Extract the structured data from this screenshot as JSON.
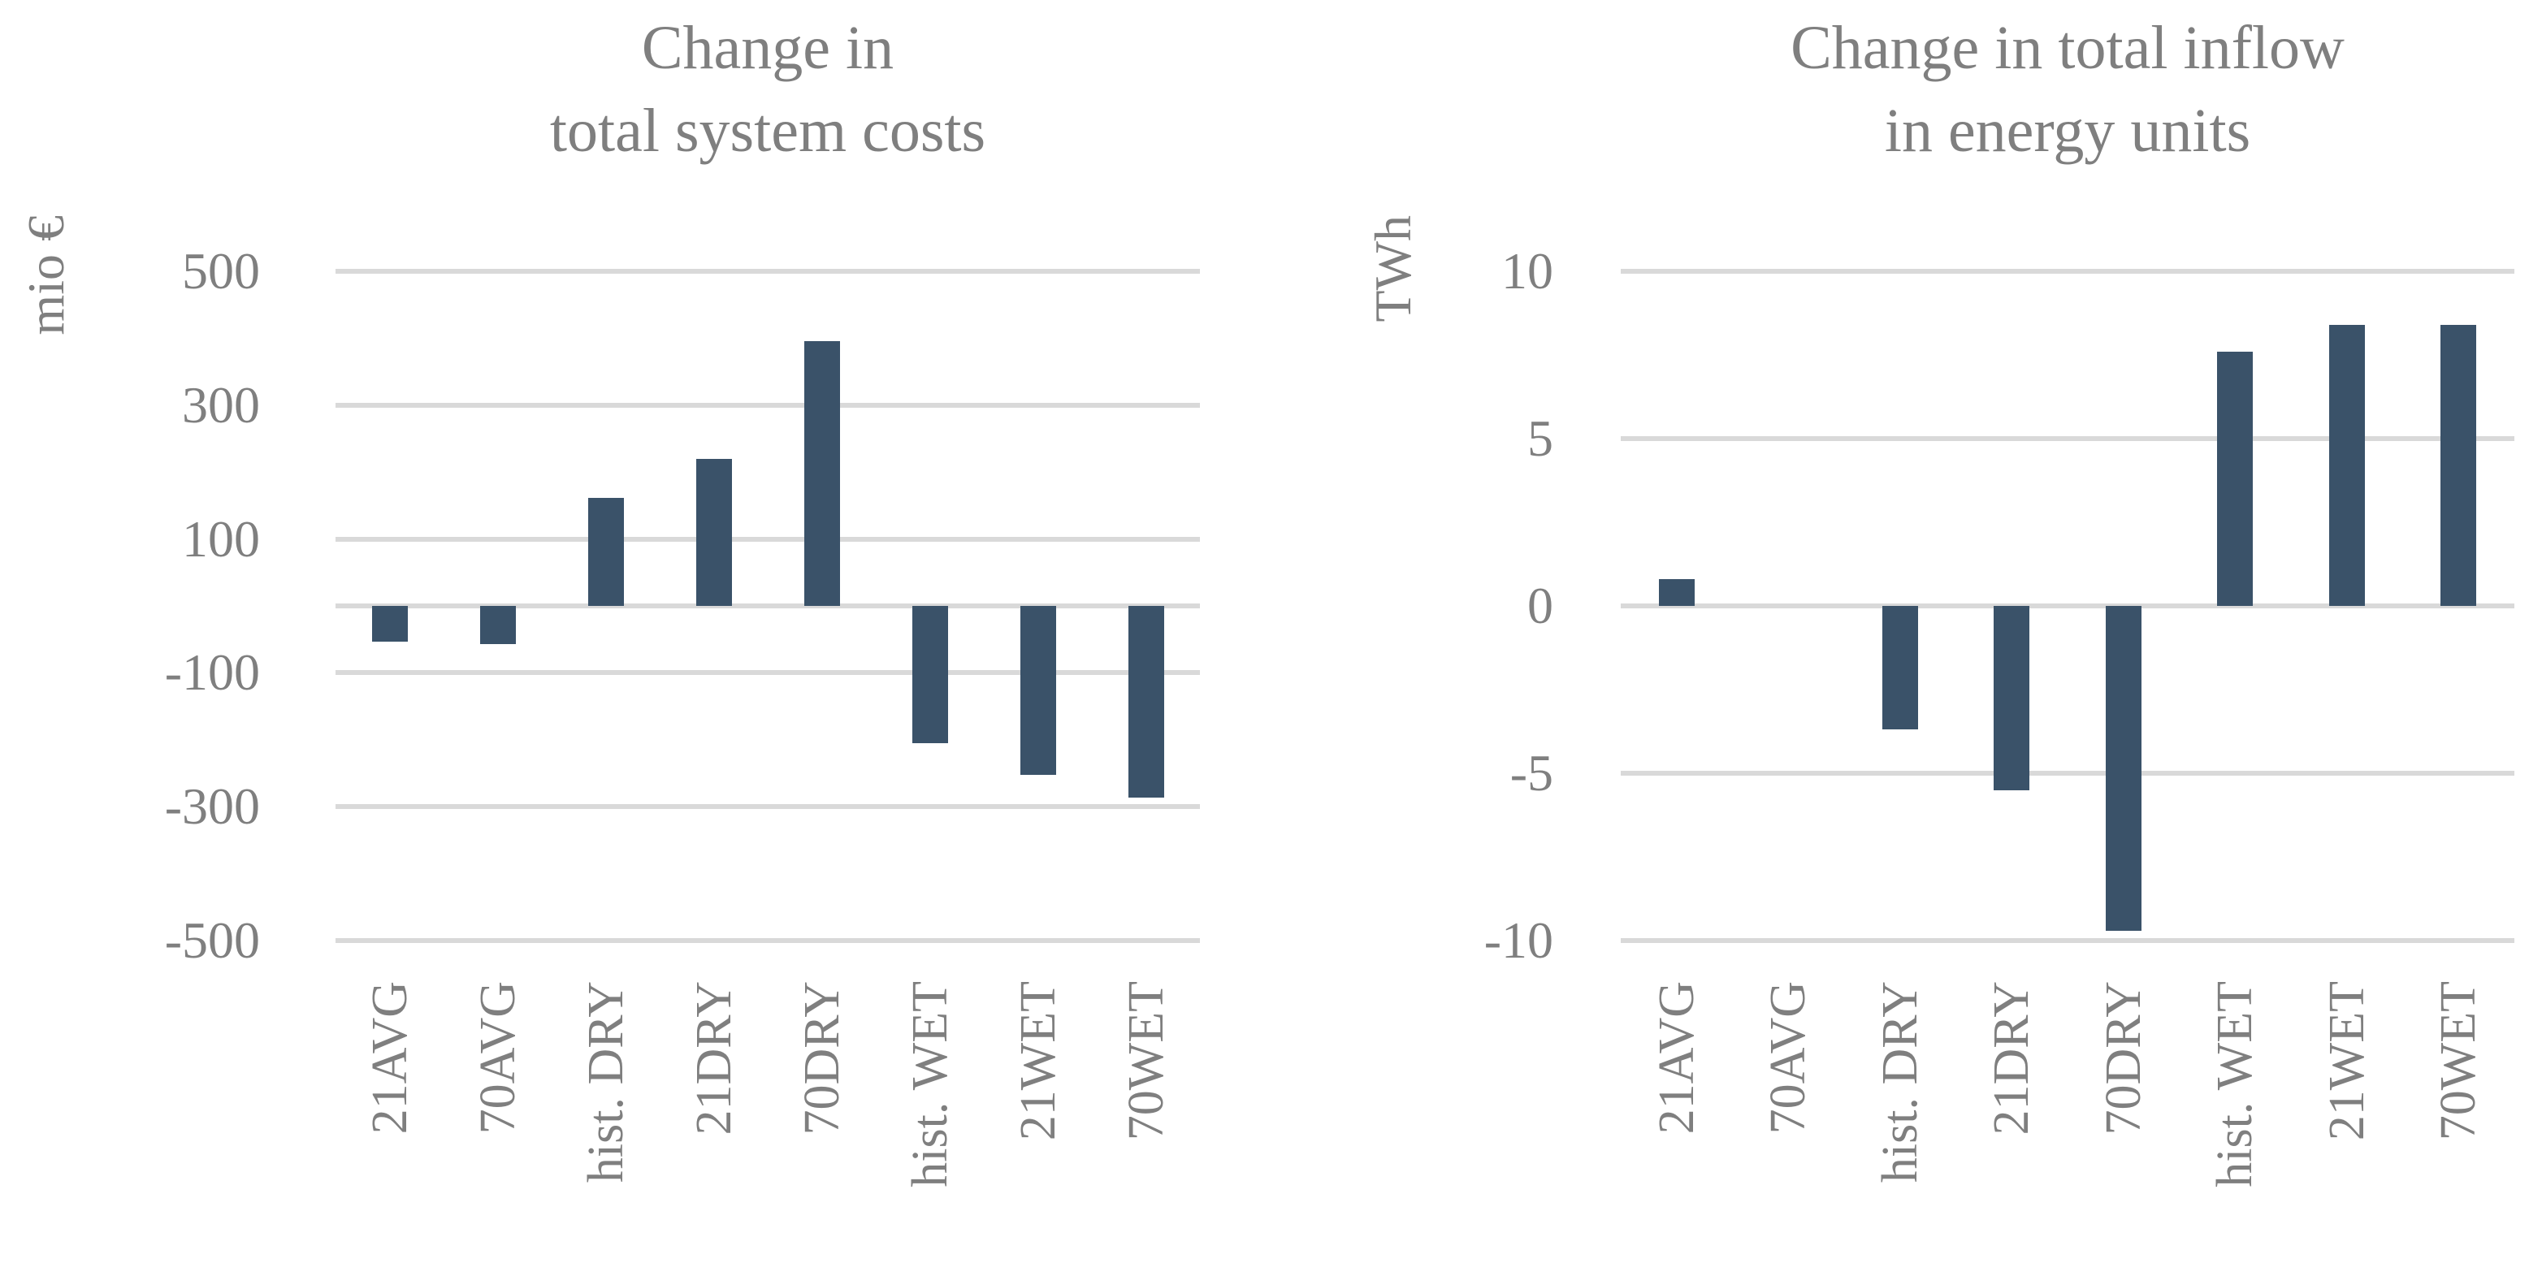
{
  "figure": {
    "background": "#FFFFFF"
  },
  "colors": {
    "bar": "#3A5269",
    "gridline": "#D9D9D9",
    "text": "#7F7F7F"
  },
  "chart_data": [
    {
      "type": "bar",
      "title_lines": [
        "Change in",
        "total system costs"
      ],
      "unit_label": "mio €",
      "categories": [
        "21AVG",
        "70AVG",
        "hist. DRY",
        "21DRY",
        "70DRY",
        "hist. WET",
        "21WET",
        "70WET"
      ],
      "values": [
        -54,
        -57,
        161,
        220,
        396,
        -205,
        -253,
        -286
      ],
      "ylim": [
        -500,
        500
      ],
      "ytick_values": [
        500,
        300,
        100,
        -100,
        -300,
        -500
      ],
      "ytick_labels": [
        "500",
        "300",
        "100",
        "-100",
        "-300",
        "-500"
      ],
      "zero_line": true,
      "grid": "horizontal",
      "legend": "none"
    },
    {
      "type": "bar",
      "title_lines": [
        "Change in total inflow",
        "in energy units"
      ],
      "unit_label": "TWh",
      "categories": [
        "21AVG",
        "70AVG",
        "hist. DRY",
        "21DRY",
        "70DRY",
        "hist. WET",
        "21WET",
        "70WET"
      ],
      "values": [
        0.8,
        0,
        -3.7,
        -5.5,
        -9.7,
        7.6,
        8.4,
        8.4
      ],
      "ylim": [
        -10,
        10
      ],
      "ytick_values": [
        10,
        5,
        0,
        -5,
        -10
      ],
      "ytick_labels": [
        "10",
        "5",
        "0",
        "-5",
        "-10"
      ],
      "zero_line": true,
      "grid": "horizontal",
      "legend": "none"
    }
  ]
}
